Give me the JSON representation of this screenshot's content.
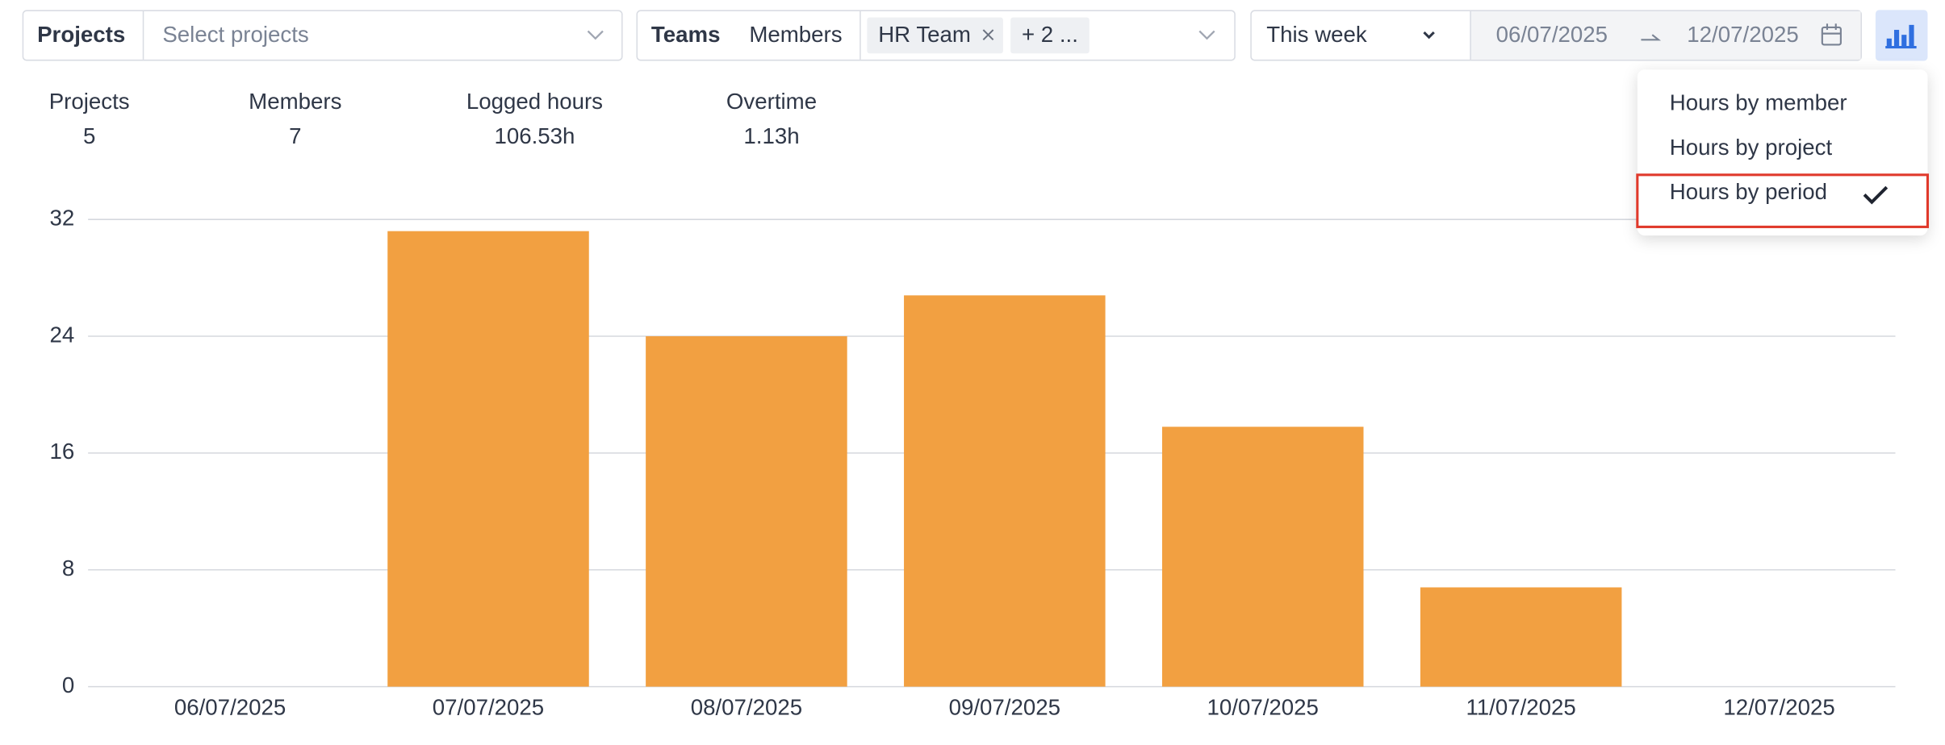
{
  "filters": {
    "projects_label": "Projects",
    "projects_placeholder": "Select projects",
    "teams_tab": "Teams",
    "members_tab": "Members",
    "tags": [
      "HR Team",
      "+ 2 ..."
    ],
    "period": "This week",
    "date_start": "06/07/2025",
    "date_end": "12/07/2025"
  },
  "stats": [
    {
      "label": "Projects",
      "value": 5
    },
    {
      "label": "Members",
      "value": 7
    },
    {
      "label": "Logged hours",
      "value": "106.53h"
    },
    {
      "label": "Overtime",
      "value": "1.13h"
    }
  ],
  "menu": {
    "items": [
      "Hours by member",
      "Hours by project",
      "Hours by period"
    ],
    "selected": 2
  },
  "chart_data": {
    "type": "bar",
    "categories": [
      "06/07/2025",
      "07/07/2025",
      "08/07/2025",
      "09/07/2025",
      "10/07/2025",
      "11/07/2025",
      "12/07/2025"
    ],
    "values": [
      0,
      31.2,
      24,
      26.8,
      17.8,
      6.8,
      0
    ],
    "color": "#f2a041",
    "ylim": [
      0,
      32
    ],
    "yticks": [
      0,
      8,
      16,
      24,
      32
    ],
    "grid": true
  }
}
